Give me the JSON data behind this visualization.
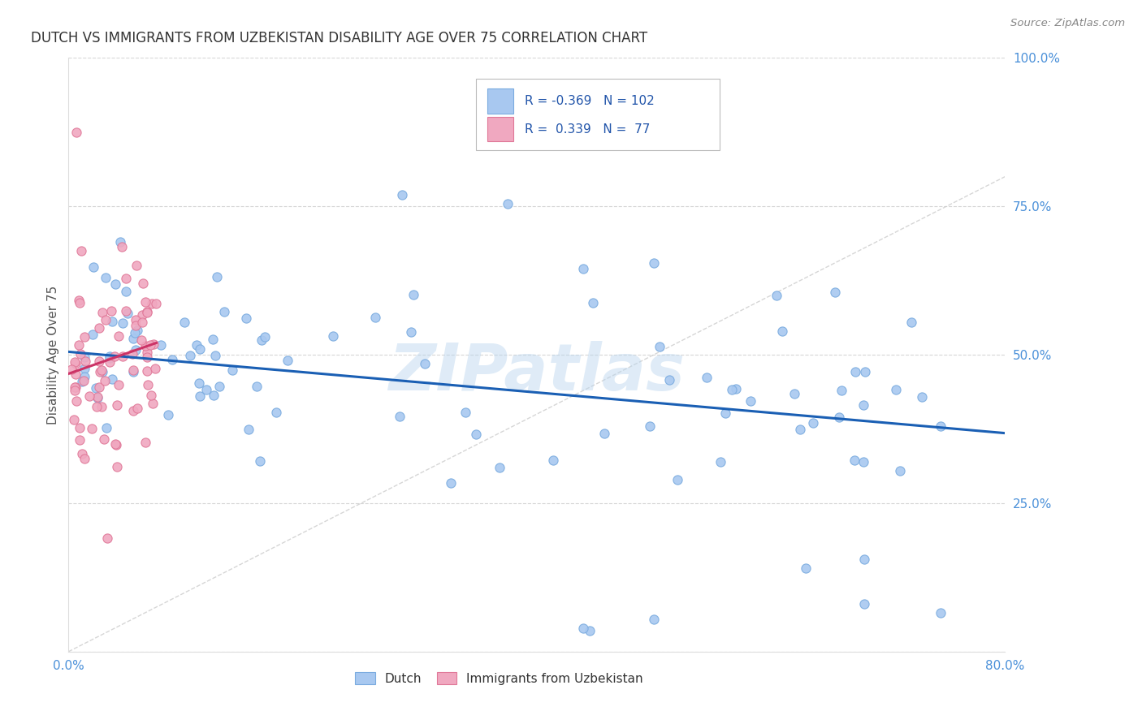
{
  "title": "DUTCH VS IMMIGRANTS FROM UZBEKISTAN DISABILITY AGE OVER 75 CORRELATION CHART",
  "source": "Source: ZipAtlas.com",
  "ylabel": "Disability Age Over 75",
  "xlim": [
    0.0,
    0.8
  ],
  "ylim": [
    0.0,
    1.0
  ],
  "xtick_positions": [
    0.0,
    0.1,
    0.2,
    0.3,
    0.4,
    0.5,
    0.6,
    0.7,
    0.8
  ],
  "xticklabels": [
    "0.0%",
    "",
    "",
    "",
    "",
    "",
    "",
    "",
    "80.0%"
  ],
  "ytick_positions": [
    0.0,
    0.25,
    0.5,
    0.75,
    1.0
  ],
  "yticklabels": [
    "",
    "25.0%",
    "50.0%",
    "75.0%",
    "100.0%"
  ],
  "watermark": "ZIPatlas",
  "dutch_color": "#a8c8f0",
  "dutch_edge_color": "#7aabdf",
  "uzbek_color": "#f0a8c0",
  "uzbek_edge_color": "#e07898",
  "dutch_line_color": "#1a5fb4",
  "uzbek_line_color": "#cc3366",
  "diag_color": "#cccccc",
  "dutch_R": -0.369,
  "dutch_N": 102,
  "uzbek_R": 0.339,
  "uzbek_N": 77,
  "legend_dutch_label": "Dutch",
  "legend_uzbek_label": "Immigrants from Uzbekistan",
  "dutch_line_x0": 0.0,
  "dutch_line_x1": 0.8,
  "dutch_line_y0": 0.505,
  "dutch_line_y1": 0.368,
  "uzbek_line_x0": 0.0,
  "uzbek_line_x1": 0.075,
  "uzbek_line_y0": 0.468,
  "uzbek_line_y1": 0.52
}
